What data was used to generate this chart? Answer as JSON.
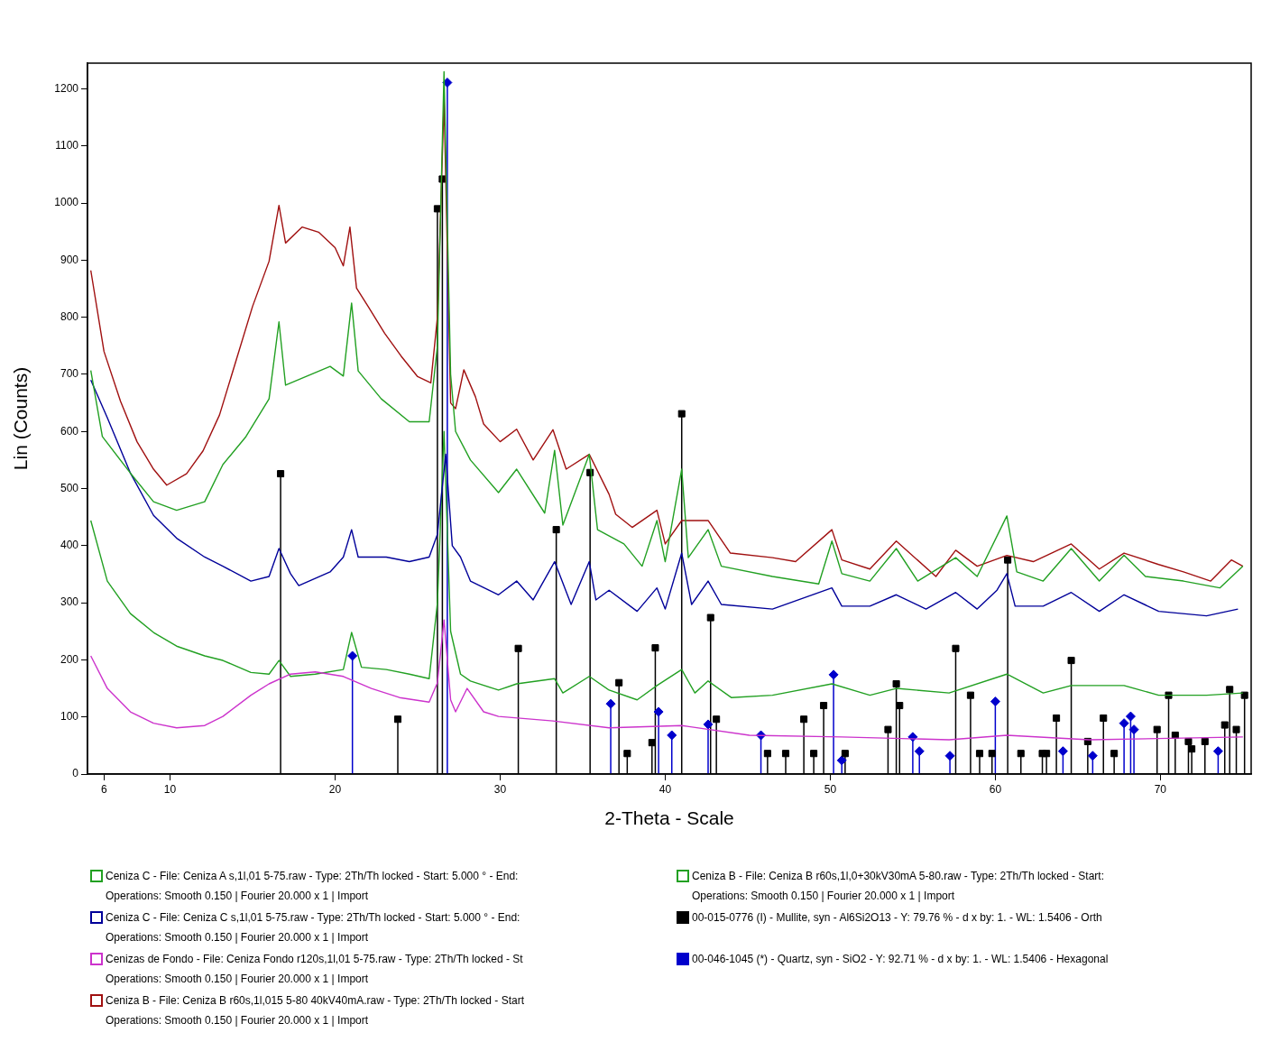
{
  "chart_data": {
    "type": "line",
    "xlabel": "2-Theta - Scale",
    "ylabel": "Lin (Counts)",
    "xlim": [
      5,
      75.5
    ],
    "ylim": [
      0,
      1245
    ],
    "xticks": [
      6,
      10,
      20,
      30,
      40,
      50,
      60,
      70
    ],
    "yticks": [
      0,
      100,
      200,
      300,
      400,
      500,
      600,
      700,
      800,
      900,
      1000,
      1100,
      1200
    ],
    "grid": false,
    "legend": "bottom",
    "marker": "none",
    "series": [
      {
        "name": "Ceniza C - File: Ceniza A s,1l,01 5-75.raw - Type: 2Th/Th locked - Start: 5.000 ° - End:\nOperations: Smooth 0.150 | Fourier 20.000 x 1 | Import",
        "color": "#22a022",
        "x": [
          5.2,
          5.9,
          7.6,
          9.0,
          10.4,
          12.1,
          13.2,
          14.6,
          16.0,
          16.6,
          17.0,
          18.3,
          19.7,
          20.5,
          21.0,
          21.4,
          22.8,
          24.5,
          25.7,
          26.2,
          26.6,
          27.0,
          27.3,
          28.2,
          29.9,
          31.0,
          32.7,
          33.3,
          33.8,
          35.4,
          35.9,
          37.5,
          38.6,
          39.5,
          40.0,
          41.0,
          41.4,
          42.6,
          43.4,
          46.5,
          49.3,
          50.1,
          50.7,
          52.4,
          54.0,
          55.3,
          57.6,
          58.9,
          60.7,
          61.3,
          62.9,
          64.6,
          66.3,
          67.8,
          69.1,
          71.4,
          73.6,
          75.0
        ],
        "values": [
          707,
          591,
          527,
          477,
          462,
          477,
          542,
          591,
          657,
          792,
          681,
          697,
          714,
          697,
          825,
          706,
          657,
          617,
          617,
          750,
          1230,
          700,
          600,
          550,
          493,
          534,
          457,
          567,
          436,
          560,
          428,
          403,
          364,
          444,
          372,
          534,
          379,
          428,
          364,
          346,
          333,
          408,
          351,
          338,
          395,
          338,
          379,
          346,
          452,
          354,
          338,
          395,
          338,
          383,
          346,
          338,
          326,
          364
        ]
      },
      {
        "name": "Ceniza C - File: Ceniza C s,1l,01 5-75.raw - Type: 2Th/Th locked - Start: 5.000 ° - End:\nOperations: Smooth 0.150 | Fourier 20.000 x 1 | Import",
        "color": "#000099",
        "x": [
          5.2,
          6.2,
          7.6,
          9.0,
          10.4,
          12.1,
          13.2,
          14.9,
          16.0,
          16.6,
          17.3,
          17.8,
          19.7,
          20.5,
          21.0,
          21.4,
          23.1,
          24.5,
          25.7,
          26.2,
          26.7,
          27.1,
          27.6,
          28.2,
          29.9,
          31.0,
          32.0,
          33.3,
          34.3,
          35.4,
          35.8,
          36.6,
          38.3,
          39.5,
          40.0,
          41.0,
          41.6,
          42.6,
          43.4,
          46.5,
          50.1,
          50.7,
          52.4,
          54.0,
          55.8,
          57.6,
          58.9,
          60.1,
          60.7,
          61.2,
          62.9,
          64.6,
          66.3,
          67.8,
          69.9,
          72.8,
          74.7
        ],
        "values": [
          690,
          624,
          527,
          453,
          413,
          380,
          364,
          338,
          346,
          395,
          351,
          330,
          354,
          380,
          428,
          380,
          380,
          372,
          380,
          420,
          560,
          400,
          380,
          338,
          314,
          338,
          305,
          372,
          297,
          372,
          305,
          322,
          285,
          326,
          289,
          387,
          297,
          338,
          297,
          289,
          326,
          294,
          294,
          314,
          289,
          318,
          289,
          322,
          351,
          294,
          294,
          318,
          285,
          314,
          285,
          277,
          289
        ]
      },
      {
        "name": "Cenizas de Fondo - File: Ceniza Fondo r120s,1l,01 5-75.raw - Type: 2Th/Th locked - St\nOperations: Smooth 0.150 | Fourier 20.000 x 1 | Import",
        "color": "#cc33cc",
        "x": [
          5.2,
          6.2,
          7.6,
          9.0,
          10.4,
          12.1,
          13.2,
          14.9,
          16.0,
          17.3,
          18.8,
          20.5,
          22.2,
          23.9,
          25.7,
          26.2,
          26.6,
          27.0,
          27.3,
          28.0,
          29.0,
          29.9,
          33.2,
          36.6,
          41.0,
          45.1,
          50.7,
          57.2,
          60.7,
          65.7,
          75.0
        ],
        "values": [
          207,
          150,
          109,
          89,
          81,
          85,
          101,
          138,
          158,
          175,
          179,
          171,
          150,
          134,
          126,
          160,
          270,
          130,
          109,
          150,
          109,
          101,
          93,
          81,
          85,
          68,
          65,
          60,
          68,
          60,
          65
        ]
      },
      {
        "name": "Ceniza B - File: Ceniza B r60s,1l,015 5-80 40kV40mA.raw - Type: 2Th/Th locked - Start\nOperations: Smooth 0.150 | Fourier 20.000 x 1 | Import",
        "color": "#a01010",
        "x": [
          5.2,
          6.0,
          7.0,
          8.0,
          9.0,
          9.8,
          11.0,
          12.0,
          13.0,
          14.0,
          15.0,
          16.0,
          16.6,
          17.0,
          18.0,
          19.0,
          20.0,
          20.5,
          20.9,
          21.3,
          22.0,
          23.0,
          24.0,
          25.0,
          25.8,
          26.2,
          26.6,
          27.0,
          27.3,
          27.8,
          28.5,
          29.0,
          30.0,
          31.0,
          32.0,
          33.2,
          34.0,
          35.4,
          36.6,
          37.0,
          38.0,
          39.5,
          40.0,
          41.0,
          42.6,
          43.95,
          46.5,
          47.9,
          50.1,
          50.7,
          52.4,
          54.0,
          56.4,
          57.6,
          58.9,
          60.7,
          62.3,
          64.6,
          66.3,
          67.8,
          69.9,
          71.4,
          73.05,
          74.3,
          75.0
        ],
        "values": [
          882,
          740,
          653,
          582,
          534,
          506,
          526,
          566,
          629,
          724,
          819,
          898,
          996,
          930,
          958,
          949,
          922,
          890,
          958,
          851,
          819,
          772,
          732,
          696,
          685,
          800,
          1180,
          650,
          640,
          708,
          661,
          613,
          582,
          604,
          550,
          603,
          534,
          560,
          490,
          455,
          432,
          462,
          403,
          444,
          444,
          387,
          379,
          372,
          428,
          375,
          359,
          408,
          346,
          392,
          364,
          383,
          372,
          403,
          359,
          387,
          367,
          354,
          338,
          375,
          364
        ]
      },
      {
        "name": "Ceniza B - File: Ceniza B r60s,1l,0+30kV30mA 5-80.raw - Type: 2Th/Th locked - Start:\nOperations: Smooth 0.150 | Fourier 20.000 x 1 | Import",
        "color": "#22a022",
        "x": [
          5.2,
          6.2,
          7.6,
          9.0,
          10.4,
          12.1,
          13.2,
          14.9,
          16.0,
          16.6,
          17.3,
          18.8,
          20.5,
          21.0,
          21.6,
          23.1,
          24.5,
          25.7,
          26.2,
          26.6,
          27.0,
          27.6,
          28.2,
          29.9,
          31.0,
          33.3,
          33.8,
          35.4,
          36.6,
          38.3,
          39.5,
          41.0,
          41.8,
          42.6,
          44.0,
          46.5,
          50.1,
          52.4,
          54.0,
          57.2,
          60.7,
          62.9,
          64.6,
          67.8,
          69.9,
          72.8,
          75.0
        ],
        "values": [
          444,
          338,
          281,
          248,
          224,
          207,
          199,
          178,
          175,
          199,
          171,
          175,
          183,
          248,
          187,
          183,
          175,
          167,
          300,
          600,
          250,
          175,
          163,
          147,
          158,
          167,
          142,
          171,
          147,
          130,
          155,
          183,
          142,
          163,
          134,
          138,
          158,
          138,
          150,
          142,
          175,
          142,
          155,
          155,
          138,
          138,
          142
        ]
      },
      {
        "type": "lollipop",
        "marker": "square",
        "name": "00-015-0776 (I) - Mullite, syn - Al6Si2O13 - Y: 79.76 % - d x by: 1. - WL: 1.5406 - Orth",
        "color": "#000000",
        "x": [
          16.7,
          23.8,
          26.2,
          26.5,
          31.1,
          33.4,
          35.45,
          37.2,
          37.7,
          39.2,
          39.4,
          41.0,
          42.75,
          43.1,
          46.2,
          47.3,
          48.4,
          49.0,
          49.6,
          50.9,
          53.5,
          54.0,
          54.2,
          57.6,
          58.5,
          59.05,
          59.8,
          60.75,
          61.55,
          62.85,
          63.1,
          63.7,
          64.6,
          65.6,
          66.55,
          67.2,
          69.8,
          70.5,
          70.9,
          71.7,
          71.9,
          72.7,
          73.9,
          74.2,
          74.6,
          75.1
        ],
        "values": [
          526,
          96,
          990,
          1042,
          220,
          428,
          528,
          160,
          36,
          55,
          221,
          631,
          274,
          96,
          36,
          36,
          96,
          36,
          120,
          36,
          78,
          158,
          120,
          220,
          138,
          36,
          36,
          375,
          36,
          36,
          36,
          98,
          199,
          57,
          98,
          36,
          78,
          138,
          68,
          57,
          44,
          57,
          86,
          148,
          78,
          138
        ]
      },
      {
        "type": "lollipop",
        "marker": "diamond",
        "name": "00-046-1045 (*) - Quartz, syn - SiO2 - Y: 92.71 % - d x by: 1. - WL: 1.5406 - Hexagonal",
        "color": "#0000cc",
        "x": [
          21.05,
          26.8,
          36.7,
          39.6,
          40.4,
          42.6,
          45.8,
          50.2,
          50.7,
          55.0,
          55.4,
          57.25,
          60.0,
          64.1,
          65.9,
          67.8,
          68.2,
          68.4,
          73.5
        ],
        "values": [
          207,
          1211,
          123,
          109,
          68,
          87,
          68,
          174,
          24,
          65,
          40,
          32,
          127,
          40,
          32,
          89,
          101,
          78,
          40
        ]
      }
    ]
  }
}
